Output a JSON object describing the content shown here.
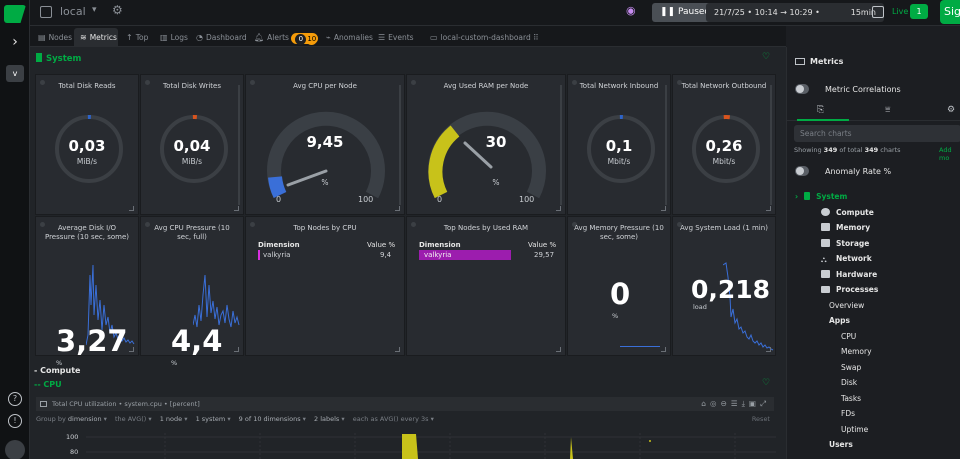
{
  "topbar": {
    "room_name": "local",
    "paused_label": "Paused",
    "time_range": "21/7/25 • 10:14 → 10:29 •",
    "duration": "15min",
    "live_label": "Live",
    "live_count": "1",
    "signin_label": "Sig"
  },
  "tabs": [
    {
      "label": "Nodes"
    },
    {
      "label": "Metrics"
    },
    {
      "label": "Top"
    },
    {
      "label": "Logs"
    },
    {
      "label": "Dashboard"
    },
    {
      "label": "Alerts"
    },
    {
      "label": "Anomalies"
    },
    {
      "label": "Events"
    },
    {
      "label": "local-custom-dashboard"
    }
  ],
  "alerts": {
    "critical": "0",
    "warning": "10"
  },
  "section": {
    "title": "System"
  },
  "cards": {
    "disk_reads": {
      "title": "Total Disk Reads",
      "value": "0,03",
      "unit": "MiB/s"
    },
    "disk_writes": {
      "title": "Total Disk Writes",
      "value": "0,04",
      "unit": "MiB/s"
    },
    "cpu": {
      "title": "Avg CPU per Node",
      "value": "9,45",
      "unit": "%",
      "min": "0",
      "max": "100"
    },
    "ram": {
      "title": "Avg Used RAM per Node",
      "value": "30",
      "unit": "%",
      "min": "0",
      "max": "100"
    },
    "net_in": {
      "title": "Total Network Inbound",
      "value": "0,1",
      "unit": "Mbit/s"
    },
    "net_out": {
      "title": "Total Network Outbound",
      "value": "0,26",
      "unit": "Mbit/s"
    },
    "disk_io": {
      "title": "Average Disk I/O Pressure (10 sec, some)",
      "value": "3,27",
      "unit": "%"
    },
    "cpu_pressure": {
      "title": "Avg CPU Pressure (10 sec, full)",
      "value": "4,4",
      "unit": "%"
    },
    "top_cpu": {
      "title": "Top Nodes by CPU",
      "col_dim": "Dimension",
      "col_val": "Value %",
      "row_name": "valkyria",
      "row_val": "9,4"
    },
    "top_ram": {
      "title": "Top Nodes by Used RAM",
      "col_dim": "Dimension",
      "col_val": "Value %",
      "row_name": "valkyria",
      "row_val": "29,57"
    },
    "mem_pressure": {
      "title": "Avg Memory Pressure (10 sec, some)",
      "value": "0",
      "unit": "%"
    },
    "load": {
      "title": "Avg System Load (1 min)",
      "value": "0,218",
      "unit": "load"
    }
  },
  "compute": {
    "title": "- Compute",
    "cpu_title": "-- CPU",
    "chart_title": "Total CPU utilization • system.cpu • [percent]",
    "filters": {
      "group_by": "Group by",
      "group_dim": "dimension",
      "agg": "the AVG()",
      "nodes": "1 node",
      "systems": "1 system",
      "dims": "9 of 10 dimensions",
      "labels": "2 labels",
      "each": "each as AVG() every 3s",
      "reset": "Reset"
    },
    "y_ticks": [
      "100",
      "80"
    ]
  },
  "panel": {
    "title": "Metrics",
    "correlations": "Metric Correlations",
    "search_placeholder": "Search charts",
    "showing_prefix": "Showing",
    "showing_count": "349",
    "showing_mid": "of total",
    "showing_total": "349",
    "showing_suffix": "charts",
    "add_more": "Add mo",
    "anomaly": "Anomaly Rate %",
    "tree": {
      "system": "System",
      "compute": "Compute",
      "memory": "Memory",
      "storage": "Storage",
      "network": "Network",
      "hardware": "Hardware",
      "processes": "Processes",
      "overview": "Overview",
      "apps": "Apps",
      "cpu": "CPU",
      "apps_memory": "Memory",
      "swap": "Swap",
      "disk": "Disk",
      "tasks": "Tasks",
      "fds": "FDs",
      "uptime": "Uptime",
      "users": "Users"
    }
  },
  "colors": {
    "accent": "#00ab44",
    "gauge_blue": "#3a6fd8",
    "gauge_yellow": "#c8c21a",
    "bar_magenta": "#9c1dae",
    "warning": "#f59c0a"
  }
}
